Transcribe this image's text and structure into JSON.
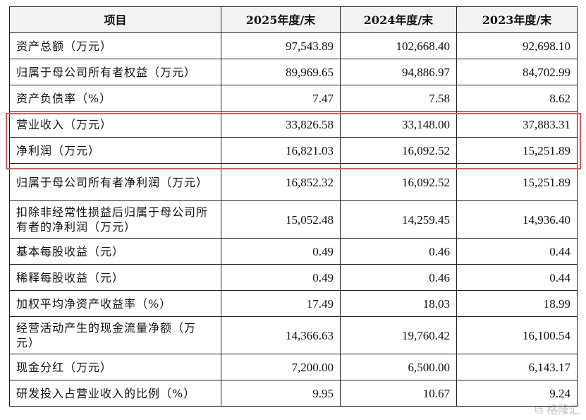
{
  "table": {
    "headers": [
      "项目",
      "2025年度/末",
      "2024年度/末",
      "2023年度/末"
    ],
    "rows": [
      {
        "label": "资产总额（万元）",
        "values": [
          "97,543.89",
          "102,668.40",
          "92,698.10"
        ]
      },
      {
        "label": "归属于母公司所有者权益（万元）",
        "values": [
          "89,969.65",
          "94,886.97",
          "84,702.99"
        ]
      },
      {
        "label": "资产负债率（%）",
        "values": [
          "7.47",
          "7.58",
          "8.62"
        ]
      },
      {
        "label": "营业收入（万元）",
        "values": [
          "33,826.58",
          "33,148.00",
          "37,883.31"
        ]
      },
      {
        "label": "净利润（万元）",
        "values": [
          "16,821.03",
          "16,092.52",
          "15,251.89"
        ]
      },
      {
        "label": "归属于母公司所有者净利润（万元）",
        "values": [
          "16,852.32",
          "16,092.52",
          "15,251.89"
        ]
      },
      {
        "label": "扣除非经常性损益后归属于母公司所有者的净利润（万元）",
        "values": [
          "15,052.48",
          "14,259.45",
          "14,936.40"
        ]
      },
      {
        "label": "基本每股收益（元）",
        "values": [
          "0.49",
          "0.46",
          "0.44"
        ]
      },
      {
        "label": "稀释每股收益（元）",
        "values": [
          "0.49",
          "0.46",
          "0.44"
        ]
      },
      {
        "label": "加权平均净资产收益率（%）",
        "values": [
          "17.49",
          "18.03",
          "18.99"
        ]
      },
      {
        "label": "经营活动产生的现金流量净额（万元）",
        "values": [
          "14,366.63",
          "19,760.42",
          "16,100.54"
        ]
      },
      {
        "label": "现金分红（万元）",
        "values": [
          "7,200.00",
          "6,500.00",
          "6,143.17"
        ]
      },
      {
        "label": "研发投入占营业收入的比例（%）",
        "values": [
          "9.95",
          "10.67",
          "9.24"
        ]
      }
    ]
  },
  "highlight_color": "#e05a5a",
  "watermark": "格隆汇"
}
